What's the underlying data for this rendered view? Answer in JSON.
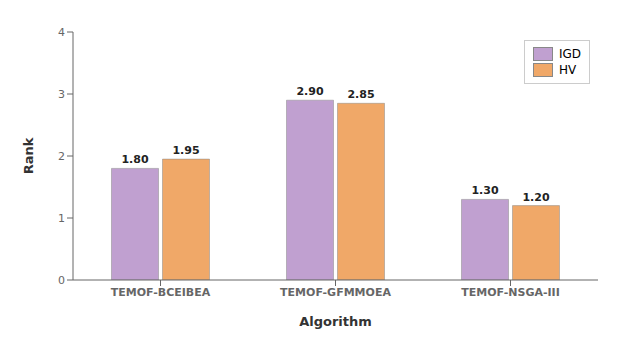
{
  "chart_data": {
    "type": "bar",
    "categories": [
      "TEMOF-BCEIBEA",
      "TEMOF-GFMMOEA",
      "TEMOF-NSGA-III"
    ],
    "series": [
      {
        "name": "IGD",
        "color": "#c0a0d0",
        "values": [
          1.8,
          2.9,
          1.3
        ],
        "value_labels": [
          "1.80",
          "2.90",
          "1.30"
        ]
      },
      {
        "name": "HV",
        "color": "#f0a868",
        "values": [
          1.95,
          2.85,
          1.2
        ],
        "value_labels": [
          "1.95",
          "2.85",
          "1.20"
        ]
      }
    ],
    "xlabel": "Algorithm",
    "ylabel": "Rank",
    "ylim": [
      0,
      4
    ],
    "yticks": [
      0,
      1,
      2,
      3,
      4
    ],
    "legend": "upper right",
    "data_labels": true,
    "grid": false
  }
}
